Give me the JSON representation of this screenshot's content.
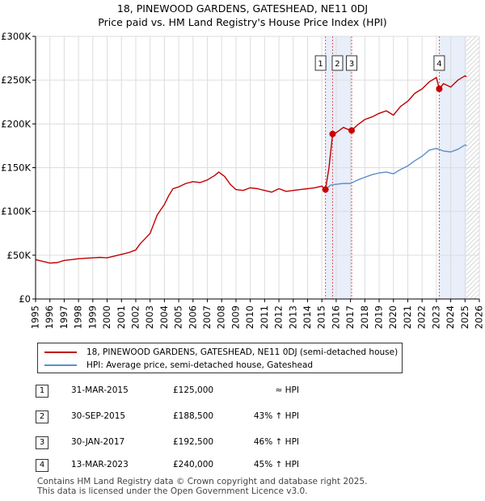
{
  "chart_data": {
    "type": "line",
    "title": "18, PINEWOOD GARDENS, GATESHEAD, NE11 0DJ",
    "subtitle": "Price paid vs. HM Land Registry's House Price Index (HPI)",
    "xlabel": "",
    "ylabel": "",
    "xlim": [
      1995,
      2026
    ],
    "ylim": [
      0,
      300000
    ],
    "yticks": [
      0,
      50000,
      100000,
      150000,
      200000,
      250000,
      300000
    ],
    "ytick_labels": [
      "£0",
      "£50K",
      "£100K",
      "£150K",
      "£200K",
      "£250K",
      "£300K"
    ],
    "xticks": [
      1995,
      1996,
      1997,
      1998,
      1999,
      2000,
      2001,
      2002,
      2003,
      2004,
      2005,
      2006,
      2007,
      2008,
      2009,
      2010,
      2011,
      2012,
      2013,
      2014,
      2015,
      2016,
      2017,
      2018,
      2019,
      2020,
      2021,
      2022,
      2023,
      2024,
      2025,
      2026
    ],
    "xtick_labels": [
      "1995",
      "1996",
      "1997",
      "1998",
      "1999",
      "2000",
      "2001",
      "2002",
      "2003",
      "2004",
      "2005",
      "2006",
      "2007",
      "2008",
      "2009",
      "2010",
      "2011",
      "2012",
      "2013",
      "2014",
      "2015",
      "2016",
      "2017",
      "2018",
      "2019",
      "2020",
      "2021",
      "2022",
      "2023",
      "2024",
      "2025",
      "2026"
    ],
    "grid": true,
    "shaded_ranges": [
      [
        2015.25,
        2017.08
      ],
      [
        2023.2,
        2026
      ]
    ],
    "hatched_range": [
      2025.1,
      2026
    ],
    "colors": {
      "property": "#c00000",
      "hpi": "#5b8fc7",
      "marker": "#cc0000",
      "vline": "#e05555",
      "shade": "#e8eefa"
    },
    "series": [
      {
        "name": "18, PINEWOOD GARDENS, GATESHEAD, NE11 0DJ (semi-detached house)",
        "color": "#c00000",
        "x": [
          1995,
          1995.5,
          1996,
          1996.5,
          1997,
          1997.5,
          1998,
          1998.5,
          1999,
          1999.5,
          2000,
          2000.5,
          2001,
          2001.5,
          2002,
          2002.3,
          2002.6,
          2003,
          2003.5,
          2004,
          2004.3,
          2004.6,
          2005,
          2005.5,
          2006,
          2006.5,
          2007,
          2007.5,
          2007.8,
          2008.2,
          2008.6,
          2009,
          2009.5,
          2010,
          2010.5,
          2011,
          2011.5,
          2012,
          2012.5,
          2013,
          2013.5,
          2014,
          2014.5,
          2015,
          2015.25,
          2015.5,
          2015.75,
          2016,
          2016.5,
          2017,
          2017.08,
          2017.5,
          2018,
          2018.5,
          2019,
          2019.5,
          2020,
          2020.5,
          2021,
          2021.5,
          2022,
          2022.5,
          2023,
          2023.2,
          2023.5,
          2024,
          2024.5,
          2025,
          2025.1
        ],
        "values": [
          45000,
          43000,
          41000,
          41500,
          44000,
          45000,
          46000,
          46500,
          47000,
          47500,
          47000,
          49000,
          51000,
          53000,
          56000,
          63000,
          68000,
          75000,
          96000,
          108000,
          118000,
          126000,
          128000,
          132000,
          134000,
          133000,
          136000,
          141000,
          145000,
          140000,
          131000,
          125000,
          124000,
          127000,
          126000,
          124000,
          122000,
          126000,
          123000,
          124000,
          125000,
          126000,
          127000,
          129000,
          125000,
          150000,
          188500,
          190000,
          196000,
          192500,
          192500,
          199000,
          205000,
          208000,
          212000,
          215000,
          210000,
          220000,
          226000,
          235000,
          240000,
          248000,
          253000,
          240000,
          246000,
          242000,
          250000,
          255000,
          254000
        ]
      },
      {
        "name": "HPI: Average price, semi-detached house, Gateshead",
        "color": "#5b8fc7",
        "x": [
          2015.25,
          2015.6,
          2016,
          2016.5,
          2017,
          2017.5,
          2018,
          2018.5,
          2019,
          2019.5,
          2020,
          2020.5,
          2021,
          2021.5,
          2022,
          2022.5,
          2023,
          2023.5,
          2024,
          2024.5,
          2025,
          2025.1
        ],
        "values": [
          125000,
          130000,
          131000,
          132000,
          132000,
          136000,
          139000,
          142000,
          144000,
          145000,
          143000,
          148000,
          152000,
          158000,
          163000,
          170000,
          172000,
          169000,
          168000,
          171000,
          176000,
          175000
        ]
      }
    ],
    "sales": [
      {
        "num": "1",
        "date": "31-MAR-2015",
        "x": 2015.25,
        "price": 125000,
        "price_label": "£125,000",
        "hpi": "≈ HPI"
      },
      {
        "num": "2",
        "date": "30-SEP-2015",
        "x": 2015.75,
        "price": 188500,
        "price_label": "£188,500",
        "hpi": "43% ↑ HPI"
      },
      {
        "num": "3",
        "date": "30-JAN-2017",
        "x": 2017.08,
        "price": 192500,
        "price_label": "£192,500",
        "hpi": "46% ↑ HPI"
      },
      {
        "num": "4",
        "date": "13-MAR-2023",
        "x": 2023.2,
        "price": 240000,
        "price_label": "£240,000",
        "hpi": "45% ↑ HPI"
      }
    ]
  },
  "legend": {
    "property": "18, PINEWOOD GARDENS, GATESHEAD, NE11 0DJ (semi-detached house)",
    "hpi": "HPI: Average price, semi-detached house, Gateshead"
  },
  "footer": {
    "line1": "Contains HM Land Registry data © Crown copyright and database right 2025.",
    "line2": "This data is licensed under the Open Government Licence v3.0."
  }
}
